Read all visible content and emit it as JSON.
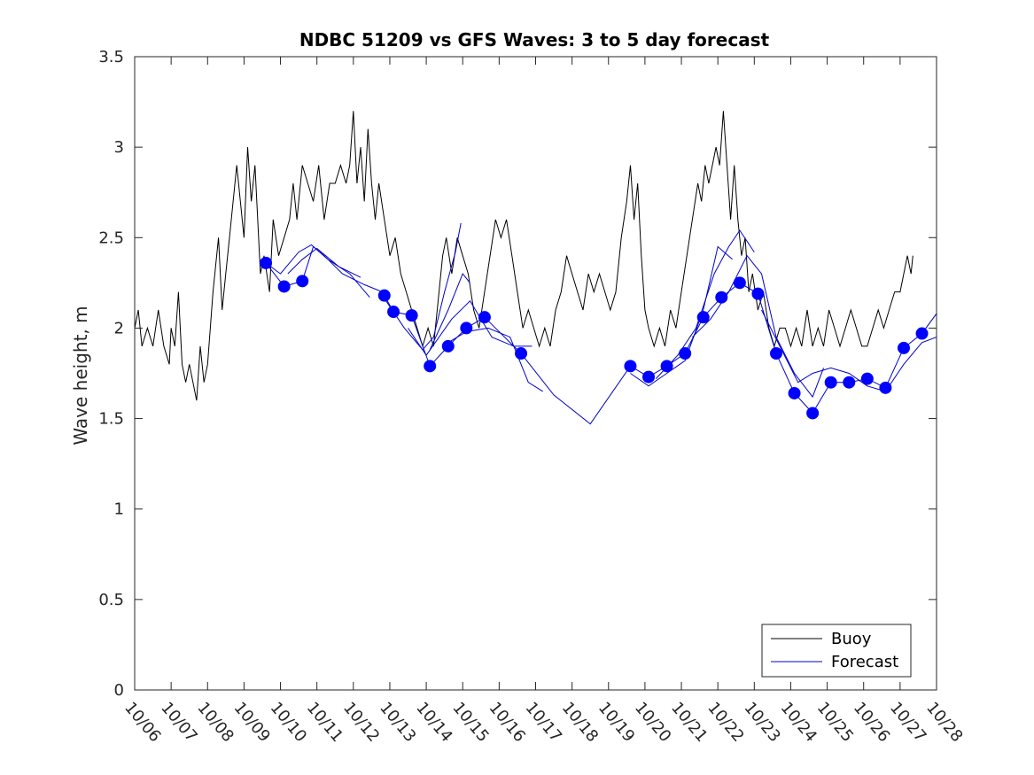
{
  "chart_data": {
    "type": "line",
    "title": "NDBC 51209 vs GFS Waves: 3 to 5 day forecast",
    "xlabel": "",
    "ylabel": "Wave height, m",
    "xlim": [
      0,
      22
    ],
    "ylim": [
      0,
      3.5
    ],
    "yticks": [
      0,
      0.5,
      1,
      1.5,
      2,
      2.5,
      3,
      3.5
    ],
    "ytick_labels": [
      "0",
      "0.5",
      "1",
      "1.5",
      "2",
      "2.5",
      "3",
      "3.5"
    ],
    "xtick_labels": [
      "10/06",
      "10/07",
      "10/08",
      "10/09",
      "10/10",
      "10/11",
      "10/12",
      "10/13",
      "10/14",
      "10/15",
      "10/16",
      "10/17",
      "10/18",
      "10/19",
      "10/20",
      "10/21",
      "10/22",
      "10/23",
      "10/24",
      "10/25",
      "10/26",
      "10/27",
      "10/28"
    ],
    "x_units": "days since 10/06 00:00",
    "legend": {
      "position": "bottom-right",
      "entries": [
        "Buoy",
        "Forecast"
      ]
    },
    "series": [
      {
        "name": "Buoy",
        "color": "#000000",
        "points": [
          [
            0.0,
            2.0
          ],
          [
            0.1,
            2.1
          ],
          [
            0.2,
            1.9
          ],
          [
            0.35,
            2.0
          ],
          [
            0.5,
            1.9
          ],
          [
            0.65,
            2.1
          ],
          [
            0.8,
            1.9
          ],
          [
            0.95,
            1.8
          ],
          [
            1.0,
            2.0
          ],
          [
            1.1,
            1.9
          ],
          [
            1.2,
            2.2
          ],
          [
            1.3,
            1.8
          ],
          [
            1.4,
            1.7
          ],
          [
            1.5,
            1.8
          ],
          [
            1.6,
            1.7
          ],
          [
            1.7,
            1.6
          ],
          [
            1.8,
            1.9
          ],
          [
            1.9,
            1.7
          ],
          [
            2.0,
            1.8
          ],
          [
            2.15,
            2.2
          ],
          [
            2.3,
            2.5
          ],
          [
            2.4,
            2.1
          ],
          [
            2.5,
            2.3
          ],
          [
            2.6,
            2.5
          ],
          [
            2.7,
            2.7
          ],
          [
            2.8,
            2.9
          ],
          [
            2.9,
            2.7
          ],
          [
            3.0,
            2.5
          ],
          [
            3.1,
            3.0
          ],
          [
            3.2,
            2.7
          ],
          [
            3.3,
            2.9
          ],
          [
            3.45,
            2.3
          ],
          [
            3.55,
            2.4
          ],
          [
            3.7,
            2.2
          ],
          [
            3.8,
            2.6
          ],
          [
            3.95,
            2.4
          ],
          [
            4.1,
            2.5
          ],
          [
            4.25,
            2.6
          ],
          [
            4.35,
            2.8
          ],
          [
            4.45,
            2.6
          ],
          [
            4.6,
            2.9
          ],
          [
            4.75,
            2.8
          ],
          [
            4.9,
            2.7
          ],
          [
            5.05,
            2.9
          ],
          [
            5.2,
            2.6
          ],
          [
            5.35,
            2.8
          ],
          [
            5.5,
            2.8
          ],
          [
            5.65,
            2.9
          ],
          [
            5.8,
            2.8
          ],
          [
            5.9,
            2.9
          ],
          [
            6.0,
            3.2
          ],
          [
            6.1,
            2.8
          ],
          [
            6.2,
            3.0
          ],
          [
            6.3,
            2.7
          ],
          [
            6.4,
            3.1
          ],
          [
            6.5,
            2.8
          ],
          [
            6.6,
            2.6
          ],
          [
            6.7,
            2.8
          ],
          [
            6.85,
            2.6
          ],
          [
            7.0,
            2.4
          ],
          [
            7.15,
            2.5
          ],
          [
            7.3,
            2.3
          ],
          [
            7.45,
            2.2
          ],
          [
            7.6,
            2.1
          ],
          [
            7.75,
            2.0
          ],
          [
            7.9,
            1.9
          ],
          [
            8.05,
            2.0
          ],
          [
            8.2,
            1.9
          ],
          [
            8.35,
            2.2
          ],
          [
            8.45,
            2.4
          ],
          [
            8.55,
            2.5
          ],
          [
            8.7,
            2.3
          ],
          [
            8.85,
            2.5
          ],
          [
            9.0,
            2.4
          ],
          [
            9.15,
            2.3
          ],
          [
            9.3,
            2.1
          ],
          [
            9.45,
            2.0
          ],
          [
            9.6,
            2.2
          ],
          [
            9.75,
            2.4
          ],
          [
            9.9,
            2.6
          ],
          [
            10.05,
            2.5
          ],
          [
            10.2,
            2.6
          ],
          [
            10.35,
            2.4
          ],
          [
            10.5,
            2.2
          ],
          [
            10.65,
            2.0
          ],
          [
            10.8,
            2.1
          ],
          [
            10.95,
            2.0
          ],
          [
            11.1,
            1.9
          ],
          [
            11.25,
            2.0
          ],
          [
            11.4,
            1.9
          ],
          [
            11.55,
            2.1
          ],
          [
            11.7,
            2.2
          ],
          [
            11.85,
            2.4
          ],
          [
            12.0,
            2.3
          ],
          [
            12.15,
            2.2
          ],
          [
            12.3,
            2.1
          ],
          [
            12.45,
            2.3
          ],
          [
            12.6,
            2.2
          ],
          [
            12.75,
            2.3
          ],
          [
            12.9,
            2.2
          ],
          [
            13.05,
            2.1
          ],
          [
            13.2,
            2.2
          ],
          [
            13.35,
            2.5
          ],
          [
            13.5,
            2.7
          ],
          [
            13.6,
            2.9
          ],
          [
            13.7,
            2.6
          ],
          [
            13.8,
            2.8
          ],
          [
            13.9,
            2.4
          ],
          [
            14.0,
            2.1
          ],
          [
            14.1,
            2.0
          ],
          [
            14.25,
            1.9
          ],
          [
            14.4,
            2.0
          ],
          [
            14.55,
            1.9
          ],
          [
            14.7,
            2.1
          ],
          [
            14.85,
            2.0
          ],
          [
            15.0,
            2.2
          ],
          [
            15.15,
            2.4
          ],
          [
            15.3,
            2.6
          ],
          [
            15.45,
            2.8
          ],
          [
            15.55,
            2.7
          ],
          [
            15.65,
            2.9
          ],
          [
            15.75,
            2.8
          ],
          [
            15.85,
            2.9
          ],
          [
            15.95,
            3.0
          ],
          [
            16.05,
            2.9
          ],
          [
            16.15,
            3.2
          ],
          [
            16.25,
            2.9
          ],
          [
            16.35,
            2.6
          ],
          [
            16.45,
            2.9
          ],
          [
            16.55,
            2.6
          ],
          [
            16.65,
            2.4
          ],
          [
            16.75,
            2.5
          ],
          [
            16.85,
            2.2
          ],
          [
            16.95,
            2.3
          ],
          [
            17.1,
            2.1
          ],
          [
            17.25,
            2.2
          ],
          [
            17.4,
            2.0
          ],
          [
            17.55,
            1.9
          ],
          [
            17.7,
            2.0
          ],
          [
            17.85,
            2.0
          ],
          [
            18.0,
            1.9
          ],
          [
            18.15,
            2.0
          ],
          [
            18.3,
            1.9
          ],
          [
            18.45,
            2.1
          ],
          [
            18.6,
            1.9
          ],
          [
            18.75,
            2.0
          ],
          [
            18.9,
            1.9
          ],
          [
            19.05,
            2.1
          ],
          [
            19.2,
            2.0
          ],
          [
            19.35,
            1.9
          ],
          [
            19.5,
            2.0
          ],
          [
            19.65,
            2.1
          ],
          [
            19.8,
            2.0
          ],
          [
            19.95,
            1.9
          ],
          [
            20.1,
            1.9
          ],
          [
            20.25,
            2.0
          ],
          [
            20.4,
            2.1
          ],
          [
            20.55,
            2.0
          ],
          [
            20.7,
            2.1
          ],
          [
            20.85,
            2.2
          ],
          [
            21.0,
            2.2
          ],
          [
            21.1,
            2.3
          ],
          [
            21.2,
            2.4
          ],
          [
            21.3,
            2.3
          ],
          [
            21.35,
            2.4
          ]
        ]
      },
      {
        "name": "Forecast",
        "color": "#0000cc",
        "points": [
          [
            3.6,
            2.36
          ],
          [
            4.1,
            2.23
          ],
          [
            4.6,
            2.26
          ],
          [
            4.9,
            2.45
          ],
          [
            5.2,
            2.4
          ],
          [
            5.7,
            2.3
          ],
          [
            6.3,
            2.24
          ],
          [
            6.8,
            2.2
          ],
          [
            6.85,
            2.18
          ],
          [
            7.1,
            2.09
          ],
          [
            7.6,
            2.07
          ],
          [
            8.1,
            1.79
          ],
          [
            8.6,
            1.9
          ],
          [
            9.1,
            2.0
          ],
          [
            9.6,
            2.06
          ],
          [
            10.6,
            1.86
          ],
          [
            11.5,
            1.63
          ],
          [
            12.5,
            1.47
          ],
          [
            13.6,
            1.79
          ],
          [
            14.1,
            1.73
          ],
          [
            14.6,
            1.79
          ],
          [
            15.1,
            1.86
          ],
          [
            15.6,
            2.06
          ],
          [
            16.1,
            2.17
          ],
          [
            16.6,
            2.25
          ],
          [
            17.1,
            2.19
          ],
          [
            17.6,
            1.86
          ],
          [
            18.1,
            1.64
          ],
          [
            18.6,
            1.53
          ],
          [
            19.1,
            1.7
          ],
          [
            19.6,
            1.7
          ],
          [
            20.1,
            1.72
          ],
          [
            20.6,
            1.67
          ],
          [
            21.1,
            1.89
          ],
          [
            21.6,
            1.97
          ],
          [
            22.0,
            2.08
          ]
        ]
      }
    ],
    "extra_forecast_traces": [
      [
        [
          3.6,
          2.36
        ],
        [
          4.0,
          2.3
        ],
        [
          4.5,
          2.42
        ],
        [
          4.85,
          2.46
        ],
        [
          5.3,
          2.38
        ],
        [
          5.9,
          2.3
        ],
        [
          6.45,
          2.17
        ]
      ],
      [
        [
          4.2,
          2.3
        ],
        [
          4.6,
          2.38
        ],
        [
          5.0,
          2.44
        ],
        [
          5.6,
          2.34
        ],
        [
          6.2,
          2.28
        ]
      ],
      [
        [
          6.9,
          2.15
        ],
        [
          7.4,
          2.0
        ],
        [
          7.9,
          1.88
        ],
        [
          8.2,
          1.95
        ],
        [
          8.5,
          2.2
        ],
        [
          8.8,
          2.42
        ],
        [
          8.95,
          2.58
        ]
      ],
      [
        [
          8.1,
          1.88
        ],
        [
          8.6,
          2.1
        ],
        [
          9.0,
          2.3
        ],
        [
          9.2,
          2.25
        ]
      ],
      [
        [
          7.5,
          2.0
        ],
        [
          8.0,
          1.85
        ],
        [
          8.7,
          2.05
        ],
        [
          9.2,
          2.15
        ],
        [
          9.8,
          1.95
        ],
        [
          10.4,
          1.9
        ],
        [
          10.9,
          1.9
        ]
      ],
      [
        [
          8.6,
          1.92
        ],
        [
          9.1,
          1.98
        ],
        [
          9.7,
          2.0
        ],
        [
          10.3,
          1.95
        ],
        [
          10.8,
          1.7
        ],
        [
          11.2,
          1.65
        ]
      ],
      [
        [
          13.6,
          1.75
        ],
        [
          14.1,
          1.68
        ],
        [
          14.6,
          1.75
        ],
        [
          15.1,
          1.82
        ],
        [
          15.6,
          2.1
        ],
        [
          16.0,
          2.45
        ],
        [
          16.4,
          2.38
        ]
      ],
      [
        [
          14.3,
          1.72
        ],
        [
          14.9,
          1.85
        ],
        [
          15.4,
          2.0
        ],
        [
          15.9,
          2.3
        ],
        [
          16.3,
          2.45
        ],
        [
          16.6,
          2.54
        ],
        [
          17.0,
          2.42
        ]
      ],
      [
        [
          15.3,
          1.95
        ],
        [
          15.8,
          2.05
        ],
        [
          16.3,
          2.2
        ],
        [
          16.8,
          2.4
        ],
        [
          17.2,
          2.3
        ],
        [
          17.6,
          1.95
        ],
        [
          18.1,
          1.75
        ],
        [
          18.6,
          1.62
        ],
        [
          18.9,
          1.78
        ]
      ],
      [
        [
          17.2,
          2.1
        ],
        [
          17.7,
          1.9
        ],
        [
          18.2,
          1.7
        ],
        [
          18.6,
          1.75
        ],
        [
          19.1,
          1.78
        ],
        [
          19.6,
          1.75
        ],
        [
          20.1,
          1.68
        ],
        [
          20.6,
          1.65
        ],
        [
          21.1,
          1.8
        ],
        [
          21.6,
          1.92
        ],
        [
          22.0,
          1.95
        ]
      ]
    ],
    "forecast_markers": [
      [
        3.6,
        2.36
      ],
      [
        4.1,
        2.23
      ],
      [
        4.6,
        2.26
      ],
      [
        6.85,
        2.18
      ],
      [
        7.1,
        2.09
      ],
      [
        7.6,
        2.07
      ],
      [
        8.1,
        1.79
      ],
      [
        8.6,
        1.9
      ],
      [
        9.1,
        2.0
      ],
      [
        9.6,
        2.06
      ],
      [
        10.6,
        1.86
      ],
      [
        13.6,
        1.79
      ],
      [
        14.1,
        1.73
      ],
      [
        14.6,
        1.79
      ],
      [
        15.1,
        1.86
      ],
      [
        15.6,
        2.06
      ],
      [
        16.1,
        2.17
      ],
      [
        16.6,
        2.25
      ],
      [
        17.1,
        2.19
      ],
      [
        17.6,
        1.86
      ],
      [
        18.1,
        1.64
      ],
      [
        18.6,
        1.53
      ],
      [
        19.1,
        1.7
      ],
      [
        19.6,
        1.7
      ],
      [
        20.1,
        1.72
      ],
      [
        20.6,
        1.67
      ],
      [
        21.1,
        1.89
      ],
      [
        21.6,
        1.97
      ]
    ]
  }
}
